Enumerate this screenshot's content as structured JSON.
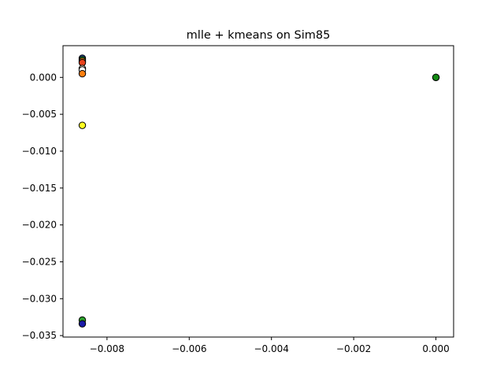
{
  "chart_data": {
    "type": "scatter",
    "title": "mlle + kmeans on Sim85",
    "xlabel": "",
    "ylabel": "",
    "xlim": [
      -0.00907,
      0.00043
    ],
    "ylim": [
      -0.0352,
      0.0043
    ],
    "grid": false,
    "legend": "none",
    "x_ticks": [
      {
        "value": -0.008,
        "label": "−0.008"
      },
      {
        "value": -0.006,
        "label": "−0.006"
      },
      {
        "value": -0.004,
        "label": "−0.004"
      },
      {
        "value": -0.002,
        "label": "−0.002"
      },
      {
        "value": 0.0,
        "label": "0.000"
      }
    ],
    "y_ticks": [
      {
        "value": 0.0,
        "label": "0.000"
      },
      {
        "value": -0.005,
        "label": "−0.005"
      },
      {
        "value": -0.01,
        "label": "−0.010"
      },
      {
        "value": -0.015,
        "label": "−0.015"
      },
      {
        "value": -0.02,
        "label": "−0.020"
      },
      {
        "value": -0.025,
        "label": "−0.025"
      },
      {
        "value": -0.03,
        "label": "−0.030"
      },
      {
        "value": -0.035,
        "label": "−0.035"
      }
    ],
    "points": [
      {
        "x": -0.0086,
        "y": 0.0026,
        "color": "#1f4fb0"
      },
      {
        "x": -0.0086,
        "y": 0.0024,
        "color": "#2ca02c"
      },
      {
        "x": -0.0086,
        "y": 0.0022,
        "color": "#ff7f0e"
      },
      {
        "x": -0.0086,
        "y": 0.002,
        "color": "#e8431c"
      },
      {
        "x": -0.0086,
        "y": 0.0012,
        "color": "#f5e6c8"
      },
      {
        "x": -0.0086,
        "y": 0.001,
        "color": "#ffffff"
      },
      {
        "x": -0.0086,
        "y": 0.0005,
        "color": "#ff7f0e"
      },
      {
        "x": -0.0086,
        "y": -0.0065,
        "color": "#ffff22"
      },
      {
        "x": -0.0086,
        "y": -0.0329,
        "color": "#2ca02c"
      },
      {
        "x": -0.0086,
        "y": -0.0334,
        "color": "#1a1aa8"
      },
      {
        "x": 0.0,
        "y": 0.0,
        "color": "#2ca02c"
      },
      {
        "x": 0.0,
        "y": 0.0,
        "color": "#138a13"
      }
    ],
    "marker_edge_color": "#000000"
  }
}
